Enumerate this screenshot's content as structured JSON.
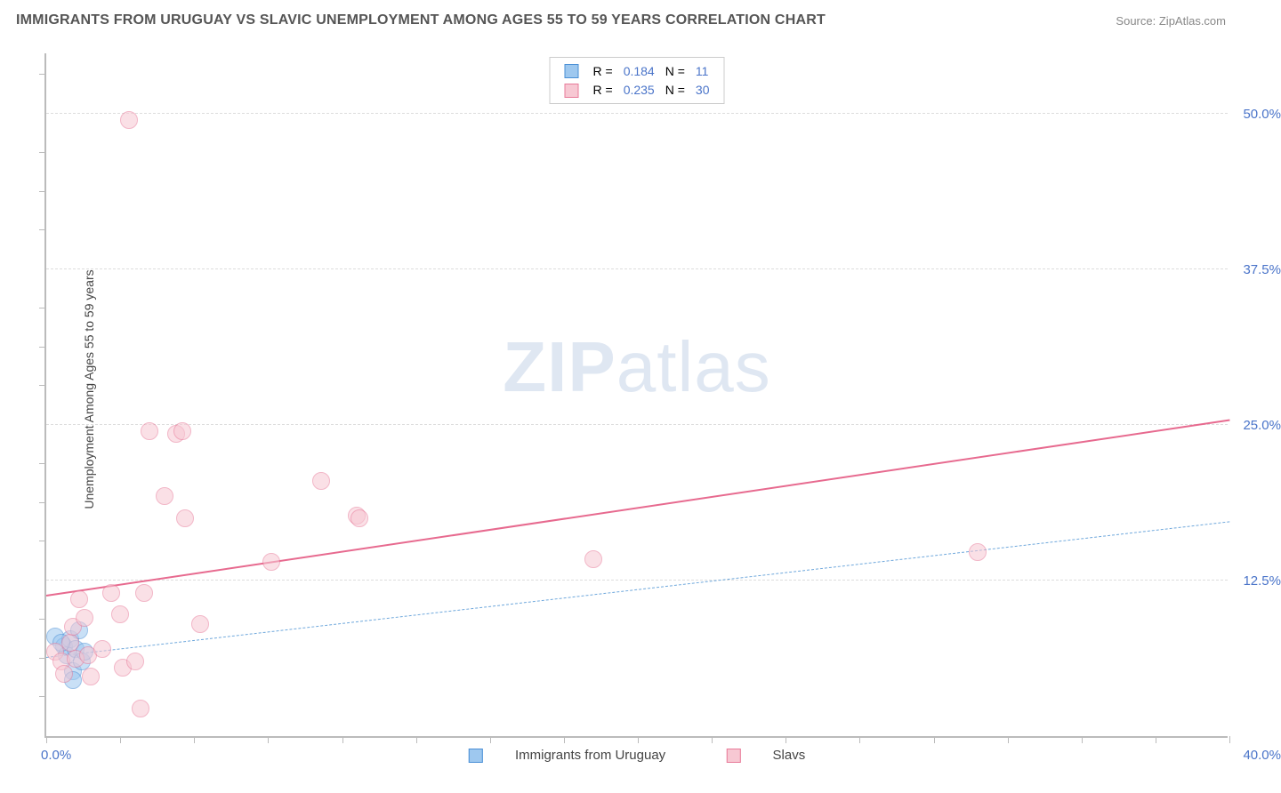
{
  "chart": {
    "type": "scatter",
    "title": "IMMIGRANTS FROM URUGUAY VS SLAVIC UNEMPLOYMENT AMONG AGES 55 TO 59 YEARS CORRELATION CHART",
    "source_label": "Source:",
    "source_name": "ZipAtlas.com",
    "watermark": {
      "part1": "ZIP",
      "part2": "atlas"
    },
    "ylabel": "Unemployment Among Ages 55 to 59 years",
    "background_color": "#ffffff",
    "grid_color": "#dddddd",
    "axis_color": "#bbbbbb",
    "title_color": "#555555",
    "title_fontsize": 16,
    "label_fontsize": 14,
    "tick_fontsize": 15,
    "tick_label_color": "#4a74c9",
    "xlim": [
      0,
      40
    ],
    "ylim": [
      0,
      55
    ],
    "x_start_label": "0.0%",
    "x_end_label": "40.0%",
    "x_minor_ticks": [
      0,
      2.5,
      5,
      7.5,
      10,
      12.5,
      15,
      17.5,
      20,
      22.5,
      25,
      27.5,
      30,
      32.5,
      35,
      37.5,
      40
    ],
    "y_gridlines": [
      {
        "value": 12.5,
        "label": "12.5%"
      },
      {
        "value": 25.0,
        "label": "25.0%"
      },
      {
        "value": 37.5,
        "label": "37.5%"
      },
      {
        "value": 50.0,
        "label": "50.0%"
      }
    ],
    "y_minor_ticks": [
      3.125,
      6.25,
      9.375,
      15.625,
      18.75,
      21.875,
      28.125,
      31.25,
      34.375,
      40.625,
      43.75,
      46.875,
      53.125
    ],
    "marker_radius": 10,
    "marker_opacity": 0.55,
    "series": [
      {
        "id": "uruguay",
        "name": "Immigrants from Uruguay",
        "fill_color": "#9ec8ef",
        "stroke_color": "#4a8fd6",
        "r_value": "0.184",
        "n_value": "11",
        "trend": {
          "y_at_x0": 6.3,
          "y_at_xmax": 17.2,
          "style": "dashed",
          "color": "#6fa8dc",
          "width": 1.5
        },
        "points": [
          {
            "x": 0.3,
            "y": 8.0
          },
          {
            "x": 0.6,
            "y": 7.2
          },
          {
            "x": 0.7,
            "y": 6.5
          },
          {
            "x": 0.8,
            "y": 7.8
          },
          {
            "x": 0.9,
            "y": 5.2
          },
          {
            "x": 1.0,
            "y": 7.0
          },
          {
            "x": 1.1,
            "y": 8.5
          },
          {
            "x": 1.2,
            "y": 6.0
          },
          {
            "x": 1.3,
            "y": 6.8
          },
          {
            "x": 0.9,
            "y": 4.5
          },
          {
            "x": 0.5,
            "y": 7.5
          }
        ]
      },
      {
        "id": "slavs",
        "name": "Slavs",
        "fill_color": "#f7c8d3",
        "stroke_color": "#e87b9a",
        "r_value": "0.235",
        "n_value": "30",
        "trend": {
          "y_at_x0": 11.2,
          "y_at_xmax": 25.3,
          "style": "solid",
          "color": "#e76a8f",
          "width": 2.5
        },
        "points": [
          {
            "x": 0.3,
            "y": 6.8
          },
          {
            "x": 0.5,
            "y": 6.0
          },
          {
            "x": 0.6,
            "y": 5.0
          },
          {
            "x": 0.8,
            "y": 7.5
          },
          {
            "x": 0.9,
            "y": 8.8
          },
          {
            "x": 1.0,
            "y": 6.2
          },
          {
            "x": 1.1,
            "y": 11.0
          },
          {
            "x": 1.3,
            "y": 9.5
          },
          {
            "x": 1.4,
            "y": 6.5
          },
          {
            "x": 1.5,
            "y": 4.8
          },
          {
            "x": 1.9,
            "y": 7.0
          },
          {
            "x": 2.2,
            "y": 11.5
          },
          {
            "x": 2.5,
            "y": 9.8
          },
          {
            "x": 2.6,
            "y": 5.5
          },
          {
            "x": 3.0,
            "y": 6.0
          },
          {
            "x": 3.2,
            "y": 2.2
          },
          {
            "x": 3.3,
            "y": 11.5
          },
          {
            "x": 2.8,
            "y": 49.5
          },
          {
            "x": 3.5,
            "y": 24.5
          },
          {
            "x": 4.4,
            "y": 24.3
          },
          {
            "x": 4.6,
            "y": 24.5
          },
          {
            "x": 4.0,
            "y": 19.3
          },
          {
            "x": 4.7,
            "y": 17.5
          },
          {
            "x": 5.2,
            "y": 9.0
          },
          {
            "x": 7.6,
            "y": 14.0
          },
          {
            "x": 9.3,
            "y": 20.5
          },
          {
            "x": 10.5,
            "y": 17.7
          },
          {
            "x": 10.6,
            "y": 17.5
          },
          {
            "x": 18.5,
            "y": 14.2
          },
          {
            "x": 31.5,
            "y": 14.8
          }
        ]
      }
    ],
    "legend_top": {
      "r_label": "R =",
      "n_label": "N =",
      "value_color": "#4a74c9",
      "text_color": "#555555"
    },
    "legend_bottom_text_color": "#444444"
  }
}
